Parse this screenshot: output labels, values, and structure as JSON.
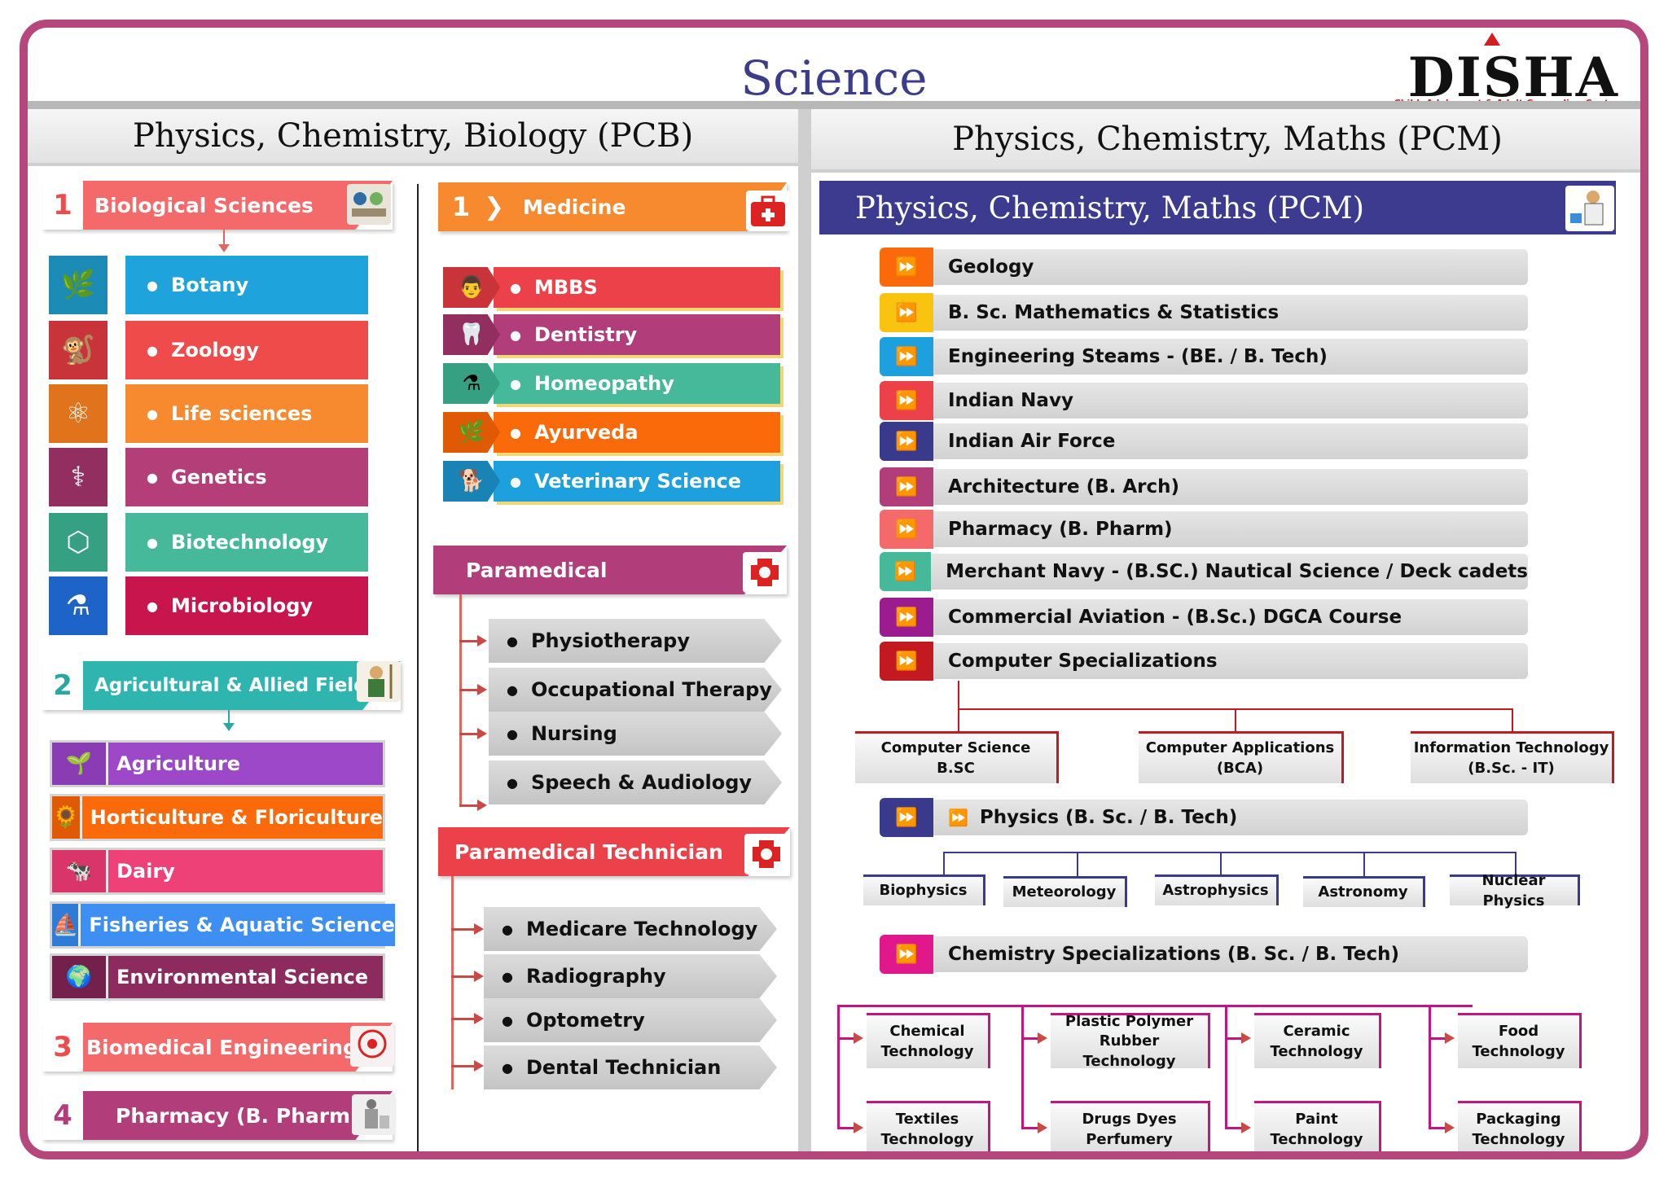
{
  "title": "Science",
  "logo": {
    "name": "DISHA",
    "tagline": "Child, Adolescent & Adult Counseling Center"
  },
  "pcb": {
    "heading": "Physics, Chemistry, Biology (PCB)",
    "biological": {
      "number": "1",
      "label": "Biological Sciences",
      "items": [
        {
          "label": "Botany",
          "color": "#1fa3dc",
          "icon": "plant-icon"
        },
        {
          "label": "Zoology",
          "color": "#ef4b4b",
          "icon": "animal-icon"
        },
        {
          "label": "Life sciences",
          "color": "#f7892e",
          "icon": "molecules-icon"
        },
        {
          "label": "Genetics",
          "color": "#b43f78",
          "icon": "dna-icon"
        },
        {
          "label": "Biotechnology",
          "color": "#45b99a",
          "icon": "molecule-icon"
        },
        {
          "label": "Microbiology",
          "color": "#c9154d",
          "icon": "flask-icon"
        }
      ]
    },
    "agricultural": {
      "number": "2",
      "label": "Agricultural & Allied Field",
      "items": [
        {
          "label": "Agriculture",
          "color": "#9c48c9"
        },
        {
          "label": "Horticulture & Floriculture",
          "color": "#fb6a0a"
        },
        {
          "label": "Dairy",
          "color": "#ee4178"
        },
        {
          "label": "Fisheries & Aquatic Science",
          "color": "#3d8ff2"
        },
        {
          "label": "Environmental Science",
          "color": "#8d2a5e"
        }
      ]
    },
    "biomedical": {
      "number": "3",
      "label": "Biomedical Engineering"
    },
    "pharmacy": {
      "number": "4",
      "label": "Pharmacy (B. Pharm)"
    },
    "medicine": {
      "number": "1",
      "label": "Medicine",
      "items": [
        {
          "label": "MBBS",
          "color": "#ec4149"
        },
        {
          "label": "Dentistry",
          "color": "#b13e7a"
        },
        {
          "label": "Homeopathy",
          "color": "#45b99a"
        },
        {
          "label": "Ayurveda",
          "color": "#fb6a0a"
        },
        {
          "label": "Veterinary Science",
          "color": "#1da0dd"
        }
      ]
    },
    "paramedical": {
      "label": "Paramedical",
      "items": [
        "Physiotherapy",
        "Occupational Therapy",
        "Nursing",
        "Speech & Audiology"
      ]
    },
    "paramedical_technician": {
      "label": "Paramedical Technician",
      "items": [
        "Medicare Technology",
        "Radiography",
        "Optometry",
        "Dental Technician"
      ]
    }
  },
  "pcm": {
    "heading": "Physics, Chemistry, Maths (PCM)",
    "banner": "Physics, Chemistry, Maths (PCM)",
    "items": [
      {
        "label": "Geology",
        "color": "#fb6a0a"
      },
      {
        "label": "B. Sc. Mathematics & Statistics",
        "color": "#f9c40f"
      },
      {
        "label": "Engineering Steams -  (BE. / B. Tech)",
        "color": "#1da0dd"
      },
      {
        "label": "Indian Navy",
        "color": "#ec4149"
      },
      {
        "label": "Indian Air Force",
        "color": "#3a3a8c"
      },
      {
        "label": "Architecture (B. Arch)",
        "color": "#b13e7a"
      },
      {
        "label": "Pharmacy (B. Pharm)",
        "color": "#f46a6a"
      },
      {
        "label": "Merchant Navy - (B.SC.) Nautical Science / Deck cadets",
        "color": "#45b99a"
      },
      {
        "label": "Commercial Aviation - (B.Sc.) DGCA Course",
        "color": "#9a1c8e"
      },
      {
        "label": "Computer Specializations",
        "color": "#c31a21"
      }
    ],
    "computer": [
      {
        "line1": "Computer Science",
        "line2": "B.SC"
      },
      {
        "line1": "Computer Applications",
        "line2": "(BCA)"
      },
      {
        "line1": "Information Technology",
        "line2": "(B.Sc. - IT)"
      }
    ],
    "physics": {
      "label": "Physics (B. Sc. / B. Tech)",
      "color": "#3a3a8c",
      "items": [
        "Biophysics",
        "Meteorology",
        "Astrophysics",
        "Astronomy",
        "Nuclear Physics"
      ]
    },
    "chemistry": {
      "label": "Chemistry Specializations  (B. Sc. / B. Tech)",
      "color": "#e0188c",
      "items": [
        {
          "line1": "Chemical",
          "line2": "Technology"
        },
        {
          "line1": "Plastic Polymer",
          "line2": "Rubber Technology"
        },
        {
          "line1": "Ceramic",
          "line2": "Technology"
        },
        {
          "line1": "Food",
          "line2": "Technology"
        },
        {
          "line1": "Textiles",
          "line2": "Technology"
        },
        {
          "line1": "Drugs Dyes",
          "line2": "Perfumery"
        },
        {
          "line1": "Paint",
          "line2": "Technology"
        },
        {
          "line1": "Packaging",
          "line2": "Technology"
        }
      ]
    }
  }
}
